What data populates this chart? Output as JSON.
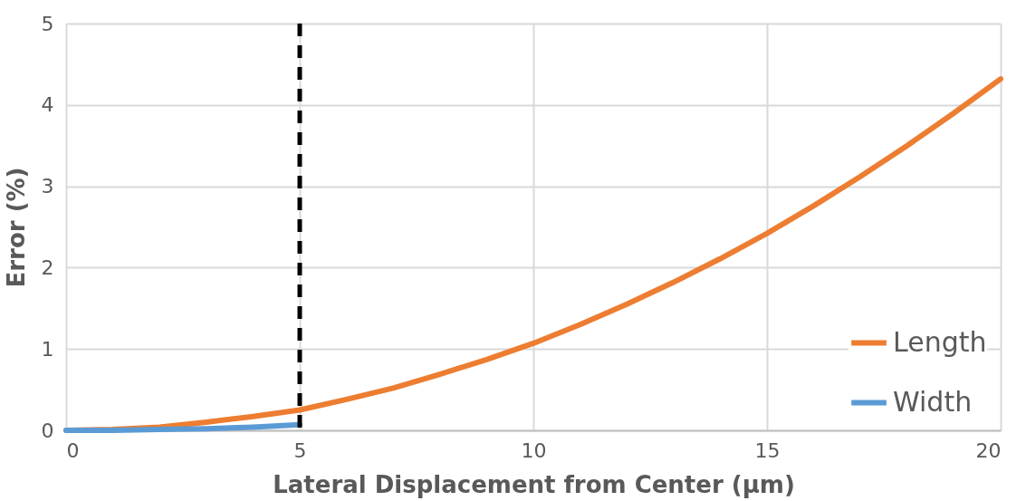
{
  "chart_data": {
    "type": "line",
    "xlabel": "Lateral Displacement from Center (µm)",
    "ylabel": "Error (%)",
    "xlim": [
      0,
      20
    ],
    "xticks": [
      0,
      5,
      10,
      15,
      20
    ],
    "ylim": [
      0,
      5
    ],
    "yticks": [
      0,
      1,
      2,
      3,
      4,
      5
    ],
    "grid": true,
    "legend": "bottom right",
    "marker": "none",
    "line_style": "solid",
    "series": [
      {
        "name": "Length",
        "color": "#ed7d31",
        "x": [
          0,
          1,
          2,
          3,
          4,
          5,
          6,
          7,
          8,
          9,
          10,
          11,
          12,
          13,
          14,
          15,
          16,
          17,
          18,
          19,
          20
        ],
        "values": [
          0,
          0.01,
          0.04,
          0.1,
          0.17,
          0.25,
          0.38,
          0.52,
          0.69,
          0.87,
          1.07,
          1.3,
          1.55,
          1.82,
          2.11,
          2.42,
          2.76,
          3.12,
          3.5,
          3.9,
          4.32
        ]
      },
      {
        "name": "Width",
        "color": "#5b9bd5",
        "x": [
          0,
          1,
          2,
          3,
          4,
          5
        ],
        "values": [
          0,
          0,
          0.01,
          0.02,
          0.04,
          0.07
        ]
      }
    ],
    "ref_lines": [
      {
        "axis": "x",
        "value": 5,
        "color": "#000000",
        "line_style": "dashed"
      }
    ]
  }
}
